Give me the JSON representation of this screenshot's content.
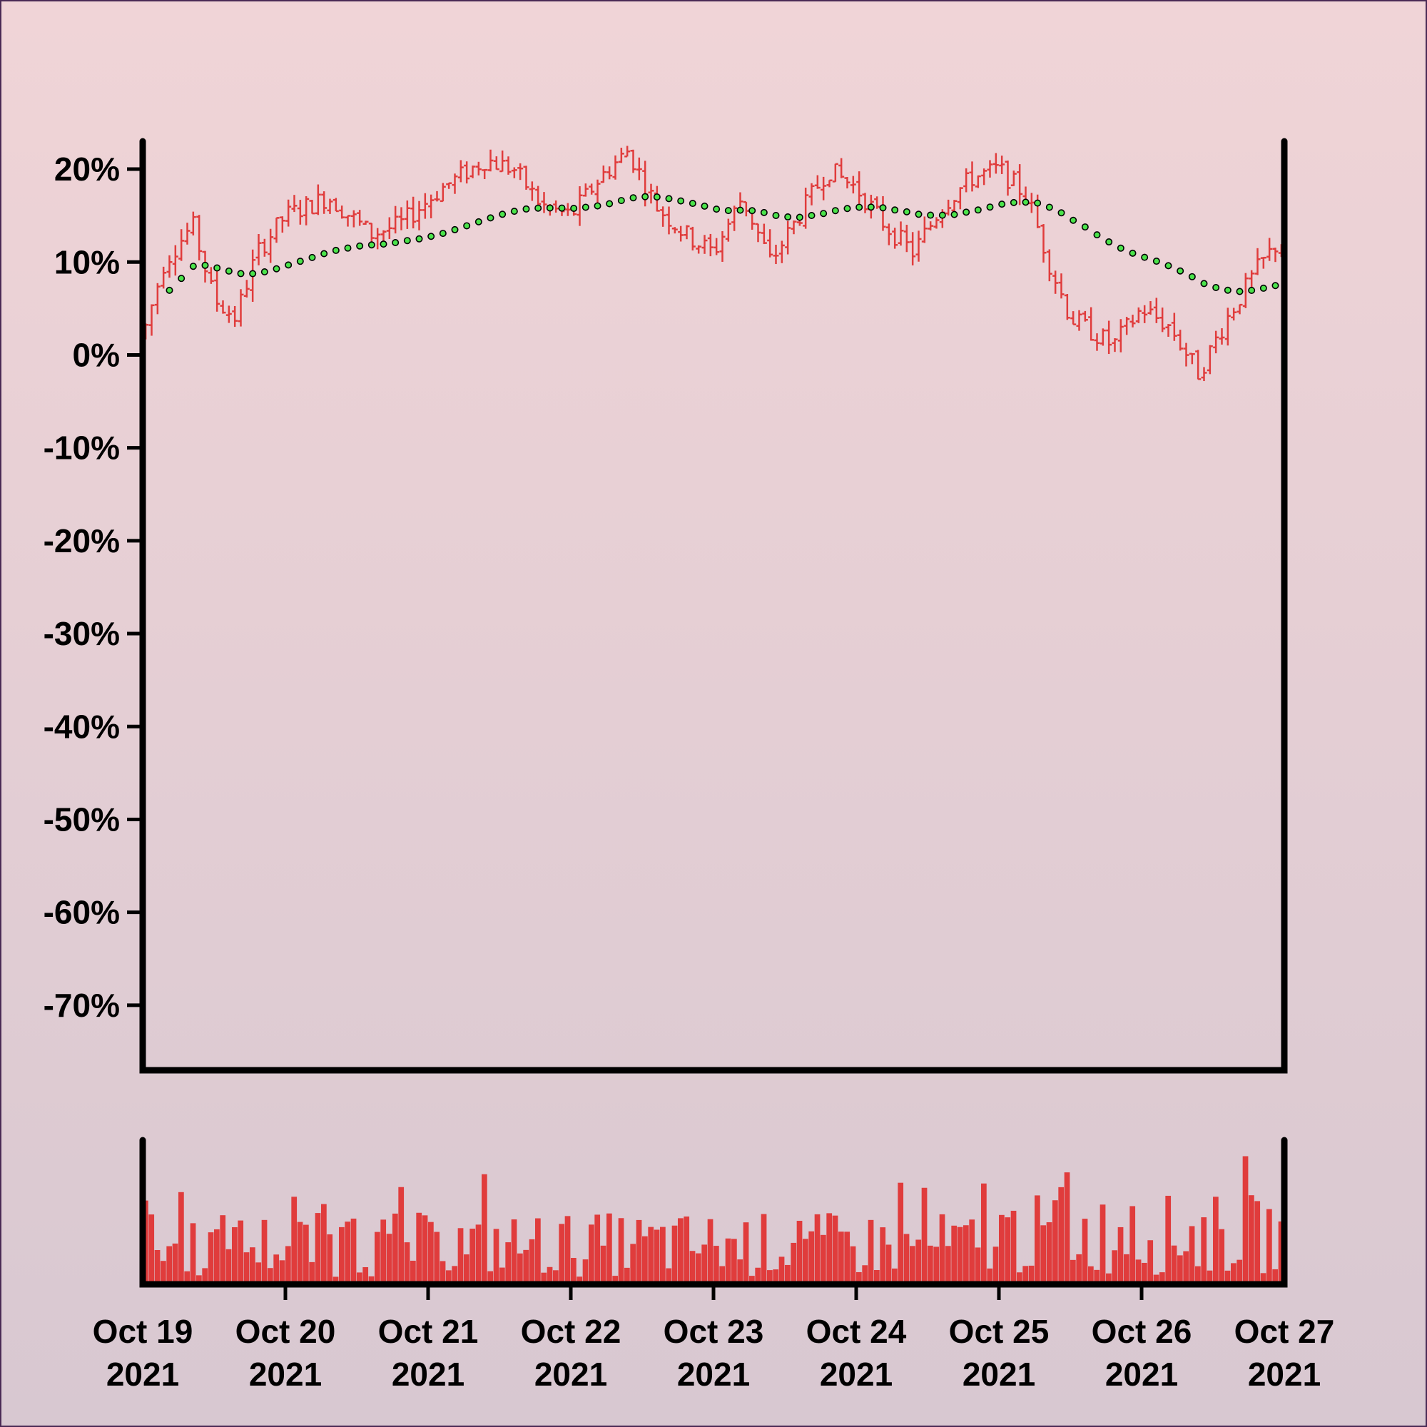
{
  "chart_data": {
    "type": "ohlc",
    "title": "",
    "price_panel": {
      "y_tick_labels": [
        "20%",
        "10%",
        "0%",
        "-10%",
        "-20%",
        "-30%",
        "-40%",
        "-50%",
        "-60%",
        "-70%"
      ],
      "y_tick_values": [
        20,
        10,
        0,
        -10,
        -20,
        -30,
        -40,
        -50,
        -60,
        -70
      ],
      "ylim": [
        -77,
        23
      ],
      "grid": false,
      "series": [
        {
          "type": "ohlc-bars",
          "color": "#e03c3c",
          "x_start": "2021-10-19 00:00",
          "x_step_hours": 1,
          "anchor_times_days": [
            0,
            0.15,
            0.35,
            0.5,
            0.65,
            0.8,
            1.0,
            1.3,
            1.6,
            1.8,
            2.1,
            2.4,
            2.6,
            2.8,
            3.0,
            3.2,
            3.4,
            3.6,
            3.8,
            4.0,
            4.2,
            4.4,
            4.6,
            4.8,
            5.0,
            5.2,
            5.4,
            5.6,
            5.8,
            6.0,
            6.2,
            6.35,
            6.5,
            6.8,
            7.0,
            7.2,
            7.4,
            7.6,
            7.8,
            7.95
          ],
          "anchor_values_pct": [
            2,
            10,
            14,
            6,
            4,
            11,
            15,
            17,
            13,
            14,
            18,
            21,
            20,
            16,
            15,
            19,
            22,
            16,
            13,
            11,
            17,
            10,
            15,
            20,
            18,
            14,
            11,
            16,
            19,
            20,
            17,
            10,
            4,
            1,
            5,
            3,
            -2,
            4,
            9,
            12
          ]
        },
        {
          "type": "moving-average-dots",
          "color": "#4be34b",
          "outline": "#000000",
          "window_hours": 12
        }
      ]
    },
    "volume_panel": {
      "color": "#e03c3c",
      "ylim": [
        0,
        100
      ],
      "grid": false
    },
    "x_axis": {
      "tick_labels": [
        [
          "Oct 19",
          "2021"
        ],
        [
          "Oct 20",
          "2021"
        ],
        [
          "Oct 21",
          "2021"
        ],
        [
          "Oct 22",
          "2021"
        ],
        [
          "Oct 23",
          "2021"
        ],
        [
          "Oct 24",
          "2021"
        ],
        [
          "Oct 25",
          "2021"
        ],
        [
          "Oct 26",
          "2021"
        ],
        [
          "Oct 27",
          "2021"
        ]
      ],
      "tick_days": [
        0,
        1,
        2,
        3,
        4,
        5,
        6,
        7,
        8
      ],
      "xlim_days": [
        0,
        8
      ]
    }
  }
}
